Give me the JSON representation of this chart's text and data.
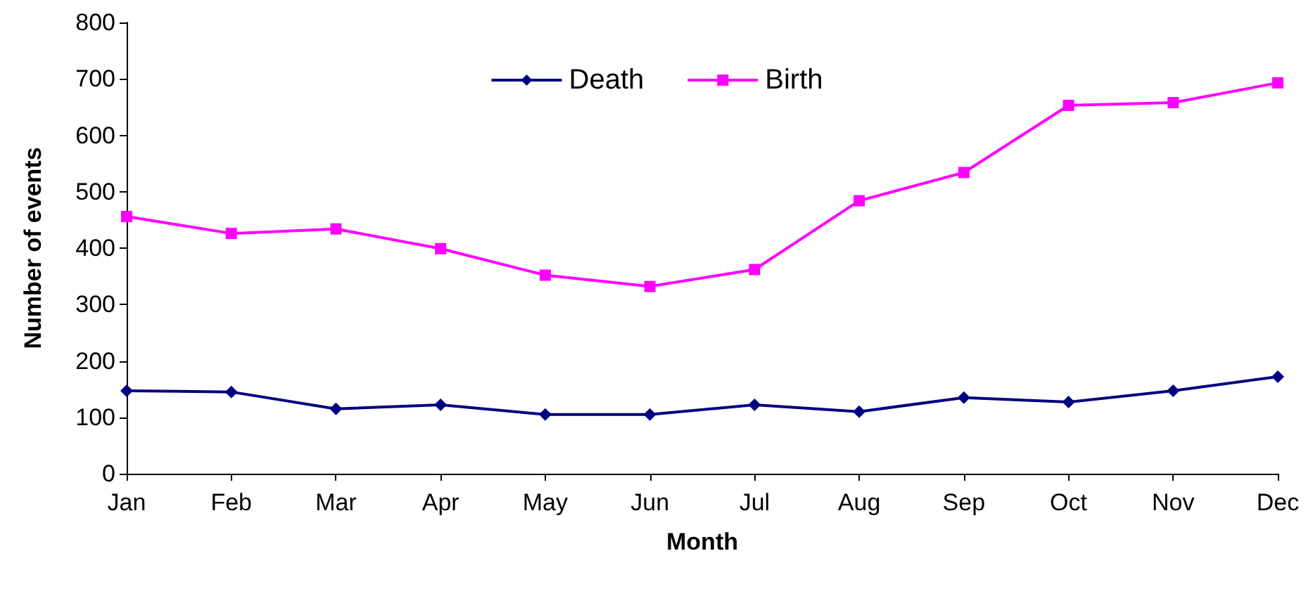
{
  "chart_data": {
    "type": "line",
    "xlabel": "Month",
    "ylabel": "Number of events",
    "categories": [
      "Jan",
      "Feb",
      "Mar",
      "Apr",
      "May",
      "Jun",
      "Jul",
      "Aug",
      "Sep",
      "Oct",
      "Nov",
      "Dec"
    ],
    "series": [
      {
        "name": "Death",
        "color": "#000080",
        "marker": "diamond",
        "values": [
          147,
          145,
          115,
          122,
          105,
          105,
          122,
          110,
          135,
          127,
          147,
          172
        ]
      },
      {
        "name": "Birth",
        "color": "#ff00ff",
        "marker": "square",
        "values": [
          456,
          426,
          434,
          399,
          352,
          332,
          362,
          484,
          534,
          653,
          658,
          693
        ]
      }
    ],
    "ylim": [
      0,
      800
    ],
    "yticks": [
      0,
      100,
      200,
      300,
      400,
      500,
      600,
      700,
      800
    ],
    "grid": false,
    "legend": "top",
    "line_style": "solid"
  }
}
